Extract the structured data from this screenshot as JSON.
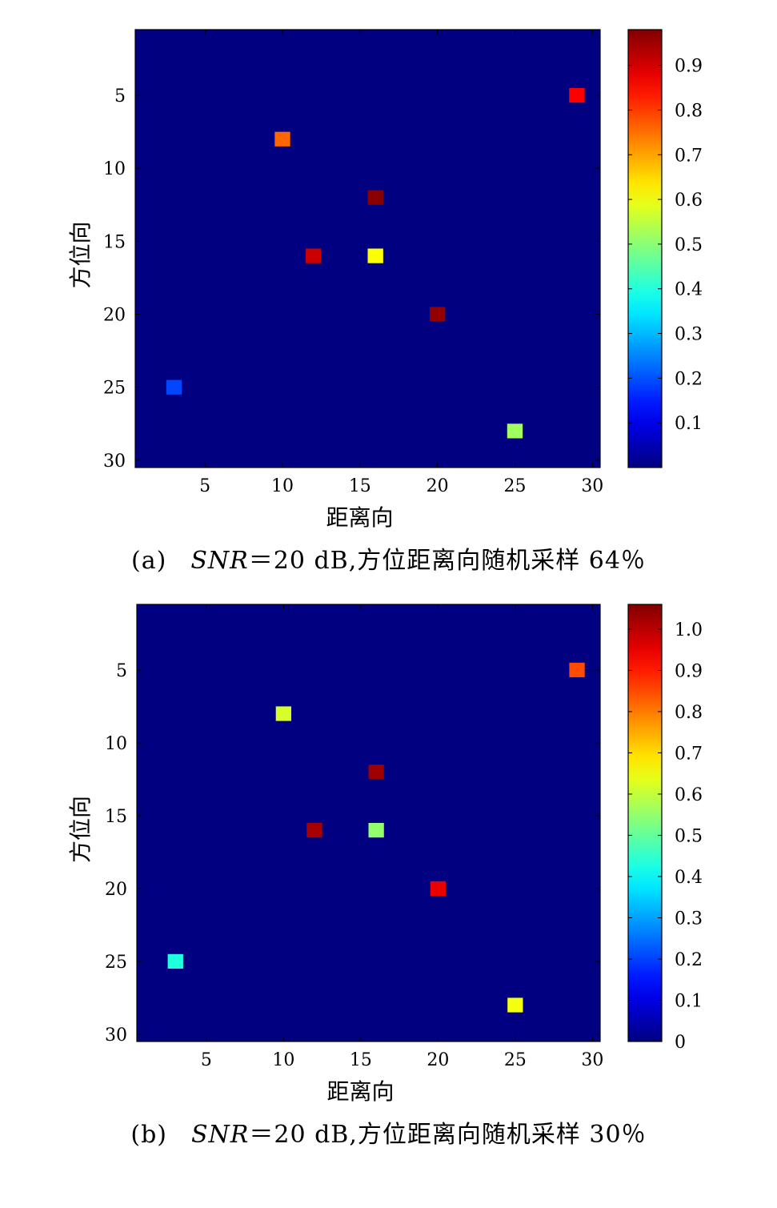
{
  "chart_data": [
    {
      "type": "heatmap",
      "xlabel": "距离向",
      "ylabel": "方位向",
      "x_range": [
        0.5,
        30.5
      ],
      "y_range": [
        0.5,
        30.5
      ],
      "y_reversed": true,
      "xticks": [
        5,
        10,
        15,
        20,
        25,
        30
      ],
      "yticks": [
        5,
        10,
        15,
        20,
        25,
        30
      ],
      "colorbar": {
        "colormap": "jet",
        "range": [
          0,
          0.98
        ],
        "ticks": [
          "0.1",
          "0.2",
          "0.3",
          "0.4",
          "0.5",
          "0.6",
          "0.7",
          "0.8",
          "0.9"
        ]
      },
      "background_value": 0,
      "points": [
        {
          "x": 29,
          "y": 5,
          "value": 0.86
        },
        {
          "x": 10,
          "y": 8,
          "value": 0.76
        },
        {
          "x": 16,
          "y": 12,
          "value": 0.97
        },
        {
          "x": 12,
          "y": 16,
          "value": 0.91
        },
        {
          "x": 16,
          "y": 16,
          "value": 0.61
        },
        {
          "x": 20,
          "y": 20,
          "value": 0.96
        },
        {
          "x": 3,
          "y": 25,
          "value": 0.19
        },
        {
          "x": 25,
          "y": 28,
          "value": 0.52
        }
      ],
      "caption": {
        "label": "(a)",
        "snr": "SNR",
        "rest": "＝20 dB,方位距离向随机采样 64％"
      }
    },
    {
      "type": "heatmap",
      "xlabel": "距离向",
      "ylabel": "方位向",
      "x_range": [
        0.5,
        30.5
      ],
      "y_range": [
        0.5,
        30.5
      ],
      "y_reversed": true,
      "xticks": [
        5,
        10,
        15,
        20,
        25,
        30
      ],
      "yticks": [
        5,
        10,
        15,
        20,
        25,
        30
      ],
      "colorbar": {
        "colormap": "jet",
        "range": [
          0,
          1.06
        ],
        "ticks": [
          "0",
          "0.1",
          "0.2",
          "0.3",
          "0.4",
          "0.5",
          "0.6",
          "0.7",
          "0.8",
          "0.9",
          "1.0"
        ]
      },
      "background_value": 0,
      "points": [
        {
          "x": 29,
          "y": 5,
          "value": 0.85
        },
        {
          "x": 10,
          "y": 8,
          "value": 0.62
        },
        {
          "x": 16,
          "y": 12,
          "value": 1.03
        },
        {
          "x": 12,
          "y": 16,
          "value": 1.02
        },
        {
          "x": 16,
          "y": 16,
          "value": 0.55
        },
        {
          "x": 20,
          "y": 20,
          "value": 0.95
        },
        {
          "x": 3,
          "y": 25,
          "value": 0.43
        },
        {
          "x": 25,
          "y": 28,
          "value": 0.65
        }
      ],
      "caption": {
        "label": "(b)",
        "snr": "SNR",
        "rest": "＝20 dB,方位距离向随机采样 30％"
      }
    }
  ]
}
